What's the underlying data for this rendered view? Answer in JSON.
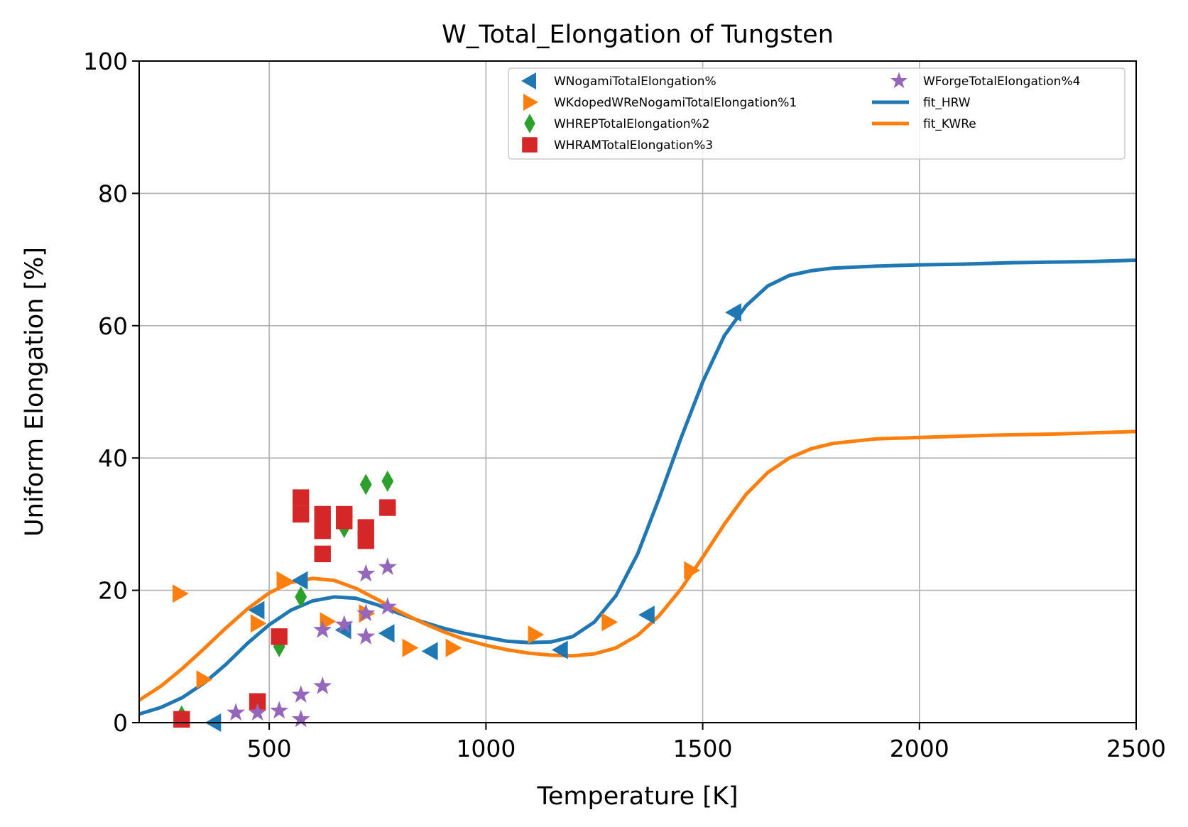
{
  "chart_data": {
    "type": "scatter",
    "title": "W_Total_Elongation of Tungsten",
    "xlabel": "Temperature [K]",
    "ylabel": "Uniform Elongation [%]",
    "xlim": [
      200,
      2500
    ],
    "ylim": [
      0,
      100
    ],
    "xticks": [
      500,
      1000,
      1500,
      2000,
      2500
    ],
    "yticks": [
      0,
      20,
      40,
      60,
      80,
      100
    ],
    "xtick_labels": [
      "500",
      "1000",
      "1500",
      "2000",
      "2500"
    ],
    "ytick_labels": [
      "0",
      "20",
      "40",
      "60",
      "80",
      "100"
    ],
    "grid": true,
    "legend_position": "top-right",
    "series": [
      {
        "name": "WNogamiTotalElongation%",
        "kind": "scatter",
        "marker": "triangle-left",
        "color": "#1f77b4",
        "points": [
          [
            373,
            0
          ],
          [
            473,
            17
          ],
          [
            573,
            21.5
          ],
          [
            673,
            14
          ],
          [
            773,
            13.5
          ],
          [
            873,
            10.8
          ],
          [
            1173,
            11
          ],
          [
            1373,
            16.3
          ],
          [
            1573,
            62
          ]
        ]
      },
      {
        "name": "WKdopedWReNogamiTotalElongation%1",
        "kind": "scatter",
        "marker": "triangle-right",
        "color": "#ff7f0e",
        "points": [
          [
            293,
            19.5
          ],
          [
            348,
            6.5
          ],
          [
            473,
            15
          ],
          [
            533,
            21.5
          ],
          [
            633,
            15.3
          ],
          [
            723,
            16.5
          ],
          [
            823,
            11.3
          ],
          [
            923,
            11.3
          ],
          [
            1113,
            13.3
          ],
          [
            1283,
            15.2
          ],
          [
            1473,
            23
          ]
        ]
      },
      {
        "name": "WHREPTotalElongation%2",
        "kind": "scatter",
        "marker": "diamond",
        "color": "#2ca02c",
        "points": [
          [
            298,
            1
          ],
          [
            523,
            11.5
          ],
          [
            573,
            19
          ],
          [
            673,
            29.5
          ],
          [
            723,
            36
          ],
          [
            773,
            36.5
          ]
        ]
      },
      {
        "name": "WHRAMTotalElongation%3",
        "kind": "scatter",
        "marker": "square",
        "color": "#d62728",
        "points": [
          [
            298,
            0.5
          ],
          [
            473,
            3.2
          ],
          [
            523,
            13
          ],
          [
            573,
            31.5
          ],
          [
            573,
            34
          ],
          [
            623,
            25.5
          ],
          [
            623,
            29
          ],
          [
            623,
            31.5
          ],
          [
            673,
            30.5
          ],
          [
            673,
            31.5
          ],
          [
            723,
            27.5
          ],
          [
            723,
            29.5
          ],
          [
            773,
            32.5
          ]
        ]
      },
      {
        "name": "WForgeTotalElongation%4",
        "kind": "scatter",
        "marker": "star",
        "color": "#9467bd",
        "points": [
          [
            423,
            1.5
          ],
          [
            473,
            1.5
          ],
          [
            523,
            1.8
          ],
          [
            573,
            0.5
          ],
          [
            573,
            4.2
          ],
          [
            623,
            5.5
          ],
          [
            623,
            14
          ],
          [
            673,
            14.8
          ],
          [
            723,
            13
          ],
          [
            723,
            16.5
          ],
          [
            723,
            22.5
          ],
          [
            773,
            17.5
          ],
          [
            773,
            23.5
          ]
        ]
      },
      {
        "name": "fit_HRW",
        "kind": "line",
        "color": "#1f77b4",
        "points": [
          [
            200,
            1.3
          ],
          [
            250,
            2.3
          ],
          [
            300,
            3.8
          ],
          [
            350,
            6
          ],
          [
            400,
            8.8
          ],
          [
            450,
            12
          ],
          [
            500,
            14.8
          ],
          [
            550,
            17
          ],
          [
            600,
            18.4
          ],
          [
            650,
            19
          ],
          [
            700,
            18.8
          ],
          [
            750,
            17.8
          ],
          [
            800,
            16.5
          ],
          [
            850,
            15.3
          ],
          [
            900,
            14.3
          ],
          [
            950,
            13.5
          ],
          [
            1000,
            12.9
          ],
          [
            1050,
            12.3
          ],
          [
            1100,
            12.1
          ],
          [
            1150,
            12.2
          ],
          [
            1200,
            13
          ],
          [
            1250,
            15.2
          ],
          [
            1300,
            19.2
          ],
          [
            1350,
            25.5
          ],
          [
            1400,
            34
          ],
          [
            1450,
            43
          ],
          [
            1500,
            51.5
          ],
          [
            1550,
            58.5
          ],
          [
            1600,
            63
          ],
          [
            1650,
            66
          ],
          [
            1700,
            67.6
          ],
          [
            1750,
            68.3
          ],
          [
            1800,
            68.7
          ],
          [
            1900,
            69
          ],
          [
            2000,
            69.2
          ],
          [
            2100,
            69.3
          ],
          [
            2200,
            69.5
          ],
          [
            2300,
            69.6
          ],
          [
            2400,
            69.7
          ],
          [
            2500,
            69.9
          ]
        ]
      },
      {
        "name": "fit_KWRe",
        "kind": "line",
        "color": "#ff7f0e",
        "points": [
          [
            200,
            3.4
          ],
          [
            250,
            5.5
          ],
          [
            300,
            8.2
          ],
          [
            350,
            11.2
          ],
          [
            400,
            14.3
          ],
          [
            450,
            17.2
          ],
          [
            500,
            19.6
          ],
          [
            550,
            21.2
          ],
          [
            600,
            21.8
          ],
          [
            650,
            21.5
          ],
          [
            700,
            20.3
          ],
          [
            750,
            18.6
          ],
          [
            800,
            16.8
          ],
          [
            850,
            15.2
          ],
          [
            900,
            13.8
          ],
          [
            950,
            12.6
          ],
          [
            1000,
            11.7
          ],
          [
            1050,
            11
          ],
          [
            1100,
            10.5
          ],
          [
            1150,
            10.2
          ],
          [
            1200,
            10.1
          ],
          [
            1250,
            10.4
          ],
          [
            1300,
            11.3
          ],
          [
            1350,
            13.2
          ],
          [
            1400,
            16.2
          ],
          [
            1450,
            20.2
          ],
          [
            1500,
            25
          ],
          [
            1550,
            30
          ],
          [
            1600,
            34.5
          ],
          [
            1650,
            37.8
          ],
          [
            1700,
            40
          ],
          [
            1750,
            41.4
          ],
          [
            1800,
            42.2
          ],
          [
            1900,
            42.9
          ],
          [
            2000,
            43.1
          ],
          [
            2100,
            43.3
          ],
          [
            2200,
            43.5
          ],
          [
            2300,
            43.6
          ],
          [
            2400,
            43.8
          ],
          [
            2500,
            44
          ]
        ]
      }
    ]
  }
}
